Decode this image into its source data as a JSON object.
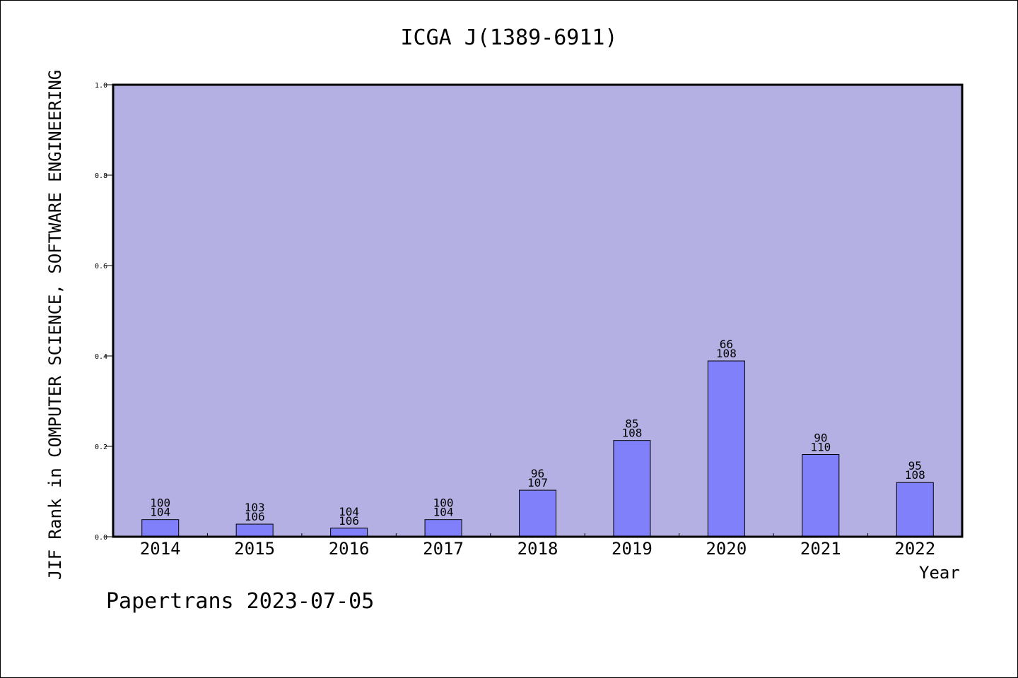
{
  "chart_data": {
    "type": "bar",
    "title": "ICGA J(1389-6911)",
    "xlabel": "Year",
    "ylabel": "JIF Rank in COMPUTER SCIENCE, SOFTWARE ENGINEERING",
    "categories": [
      "2014",
      "2015",
      "2016",
      "2017",
      "2018",
      "2019",
      "2020",
      "2021",
      "2022"
    ],
    "values": [
      0.038,
      0.028,
      0.019,
      0.038,
      0.103,
      0.213,
      0.389,
      0.182,
      0.12
    ],
    "rank_labels": [
      "100",
      "103",
      "104",
      "100",
      "96",
      "85",
      "66",
      "90",
      "95"
    ],
    "total_labels": [
      "104",
      "106",
      "106",
      "104",
      "107",
      "108",
      "108",
      "110",
      "108"
    ],
    "ylim": [
      0,
      1.0
    ],
    "yticks": [
      "0.0",
      "0.2",
      "0.4",
      "0.6",
      "0.8",
      "1.0"
    ],
    "grid": false,
    "legend": "none",
    "colors": {
      "plot_background": "#b5b0e3",
      "bar_fill": "#8080fb",
      "axis": "#000000"
    }
  },
  "footer": "Papertrans 2023-07-05"
}
